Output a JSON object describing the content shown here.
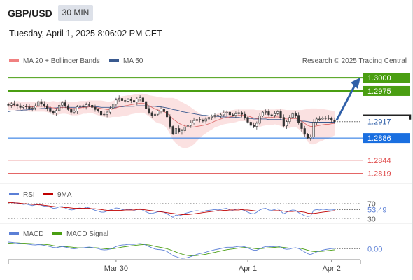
{
  "header": {
    "symbol": "GBP/USD",
    "timeframe": "30 MIN",
    "datetime": "Tuesday, April 1, 2025 8:06:02 PM CET"
  },
  "chart_data": [
    {
      "type": "candlestick",
      "title": "GBP/USD",
      "legend": [
        {
          "name": "MA 20 + Bollinger Bands",
          "color": "#f08080"
        },
        {
          "name": "MA 50",
          "color": "#3a5a8f"
        }
      ],
      "watermark": "Research © 2025 Trading Central",
      "ylim": [
        1.28,
        1.302
      ],
      "x_ticks": [
        "Mar 30",
        "Apr 1",
        "Apr 2"
      ],
      "levels": [
        {
          "value": 1.3,
          "label": "1.3000",
          "color": "#4a9e12",
          "kind": "resistance"
        },
        {
          "value": 1.2975,
          "label": "1.2975",
          "color": "#4a9e12",
          "kind": "resistance"
        },
        {
          "value": 1.2917,
          "label": "1.2917",
          "color": "#333333",
          "kind": "last"
        },
        {
          "value": 1.2886,
          "label": "1.2886",
          "color": "#1a6fe0",
          "kind": "pivot"
        },
        {
          "value": 1.2844,
          "label": "1.2844",
          "color": "#e05050",
          "kind": "support"
        },
        {
          "value": 1.2819,
          "label": "1.2819",
          "color": "#e05050",
          "kind": "support"
        }
      ],
      "closes": [
        1.2948,
        1.2951,
        1.2949,
        1.2947,
        1.2944,
        1.2946,
        1.2945,
        1.2942,
        1.2943,
        1.2947,
        1.2955,
        1.295,
        1.2947,
        1.2942,
        1.2936,
        1.2933,
        1.2938,
        1.2948,
        1.2953,
        1.2947,
        1.294,
        1.2935,
        1.2937,
        1.2945,
        1.2947,
        1.2945,
        1.2949,
        1.2948,
        1.2944,
        1.294,
        1.2937,
        1.293,
        1.2931,
        1.2935,
        1.2942,
        1.295,
        1.2958,
        1.2961,
        1.2957,
        1.2956,
        1.2959,
        1.2957,
        1.2954,
        1.296,
        1.2962,
        1.2955,
        1.2942,
        1.2934,
        1.2929,
        1.2931,
        1.2937,
        1.2941,
        1.2936,
        1.2926,
        1.2908,
        1.2894,
        1.2904,
        1.2898,
        1.29,
        1.2907,
        1.291,
        1.2915,
        1.2919,
        1.2921,
        1.292,
        1.2918,
        1.2922,
        1.2925,
        1.2927,
        1.2929,
        1.2928,
        1.293,
        1.2933,
        1.2935,
        1.293,
        1.2929,
        1.2932,
        1.2934,
        1.2931,
        1.2925,
        1.2916,
        1.291,
        1.2908,
        1.2914,
        1.2928,
        1.2935,
        1.2936,
        1.293,
        1.2929,
        1.2932,
        1.2936,
        1.2925,
        1.2909,
        1.2917,
        1.2925,
        1.2932,
        1.2929,
        1.2915,
        1.2904,
        1.2893,
        1.2886,
        1.2888,
        1.2916,
        1.2922,
        1.2922,
        1.2924,
        1.2924,
        1.2923,
        1.292,
        1.2917
      ],
      "ma20": [
        1.2946,
        1.2947,
        1.2947,
        1.2947,
        1.2946,
        1.2946,
        1.2946,
        1.2945,
        1.2945,
        1.2945,
        1.2946,
        1.2946,
        1.2946,
        1.2945,
        1.2944,
        1.2943,
        1.2942,
        1.2943,
        1.2944,
        1.2944,
        1.2943,
        1.2942,
        1.2942,
        1.2942,
        1.2943,
        1.2944,
        1.2944,
        1.2945,
        1.2945,
        1.2944,
        1.2943,
        1.2942,
        1.2941,
        1.294,
        1.294,
        1.2941,
        1.2943,
        1.2945,
        1.2946,
        1.2947,
        1.2948,
        1.2949,
        1.295,
        1.2951,
        1.2952,
        1.2952,
        1.295,
        1.2947,
        1.2944,
        1.2941,
        1.2939,
        1.2938,
        1.2936,
        1.2933,
        1.2928,
        1.2922,
        1.2918,
        1.2914,
        1.2911,
        1.2909,
        1.2908,
        1.2907,
        1.2907,
        1.2908,
        1.2909,
        1.291,
        1.2911,
        1.2913,
        1.2915,
        1.2918,
        1.292,
        1.2922,
        1.2924,
        1.2925,
        1.2926,
        1.2927,
        1.2928,
        1.2929,
        1.2929,
        1.2929,
        1.2928,
        1.2926,
        1.2924,
        1.2923,
        1.2923,
        1.2924,
        1.2925,
        1.2925,
        1.2925,
        1.2926,
        1.2926,
        1.2925,
        1.2923,
        1.2922,
        1.2922,
        1.2923,
        1.2923,
        1.2921,
        1.2918,
        1.2914,
        1.291,
        1.2908,
        1.2908,
        1.2909,
        1.291,
        1.2911,
        1.2912,
        1.2912,
        1.2913,
        1.2914
      ],
      "bb_upper": [
        1.2953,
        1.2955,
        1.2955,
        1.2956,
        1.2955,
        1.2955,
        1.2955,
        1.2954,
        1.2954,
        1.2954,
        1.2956,
        1.2956,
        1.2956,
        1.2955,
        1.2955,
        1.2956,
        1.2955,
        1.2955,
        1.2956,
        1.2956,
        1.2955,
        1.2955,
        1.2955,
        1.2955,
        1.2956,
        1.2956,
        1.2956,
        1.2957,
        1.2957,
        1.2957,
        1.2957,
        1.2957,
        1.2956,
        1.2955,
        1.2955,
        1.2956,
        1.296,
        1.2964,
        1.2965,
        1.2966,
        1.2967,
        1.2967,
        1.2968,
        1.2969,
        1.297,
        1.297,
        1.2969,
        1.2967,
        1.2966,
        1.2965,
        1.2964,
        1.2963,
        1.2962,
        1.2962,
        1.2962,
        1.2962,
        1.296,
        1.2957,
        1.2954,
        1.2951,
        1.2948,
        1.2944,
        1.294,
        1.2936,
        1.2932,
        1.2929,
        1.2927,
        1.2927,
        1.2928,
        1.293,
        1.2932,
        1.2934,
        1.2936,
        1.2937,
        1.2938,
        1.2939,
        1.294,
        1.294,
        1.294,
        1.294,
        1.294,
        1.294,
        1.294,
        1.2939,
        1.2939,
        1.2939,
        1.294,
        1.294,
        1.294,
        1.294,
        1.2941,
        1.2941,
        1.294,
        1.2939,
        1.2939,
        1.2939,
        1.2939,
        1.2939,
        1.2939,
        1.294,
        1.2941,
        1.2942,
        1.2942,
        1.2942,
        1.2941,
        1.2941,
        1.294,
        1.2939,
        1.2938,
        1.2937
      ],
      "bb_lower": [
        1.2939,
        1.2939,
        1.2939,
        1.2938,
        1.2937,
        1.2937,
        1.2937,
        1.2936,
        1.2936,
        1.2936,
        1.2936,
        1.2936,
        1.2936,
        1.2935,
        1.2933,
        1.293,
        1.2929,
        1.2931,
        1.2932,
        1.2932,
        1.2931,
        1.2929,
        1.2929,
        1.2929,
        1.293,
        1.2932,
        1.2932,
        1.2933,
        1.2933,
        1.2931,
        1.2929,
        1.2927,
        1.2926,
        1.2925,
        1.2925,
        1.2926,
        1.2926,
        1.2926,
        1.2927,
        1.2928,
        1.2929,
        1.2931,
        1.2932,
        1.2933,
        1.2934,
        1.2934,
        1.2931,
        1.2927,
        1.2922,
        1.2917,
        1.2914,
        1.2913,
        1.291,
        1.2904,
        1.2894,
        1.2882,
        1.2876,
        1.2871,
        1.2868,
        1.2867,
        1.2868,
        1.287,
        1.2874,
        1.288,
        1.2886,
        1.2891,
        1.2895,
        1.2899,
        1.2902,
        1.2906,
        1.2908,
        1.291,
        1.2912,
        1.2913,
        1.2914,
        1.2915,
        1.2916,
        1.2918,
        1.2918,
        1.2918,
        1.2916,
        1.2912,
        1.2908,
        1.2907,
        1.2907,
        1.2909,
        1.291,
        1.291,
        1.291,
        1.2912,
        1.2911,
        1.2909,
        1.2906,
        1.2905,
        1.2905,
        1.2907,
        1.2907,
        1.2903,
        1.2897,
        1.2888,
        1.2879,
        1.2874,
        1.2874,
        1.2876,
        1.2879,
        1.2881,
        1.2884,
        1.2885,
        1.2888,
        1.2891
      ],
      "ma50": [
        1.2936,
        1.2937,
        1.2937,
        1.2938,
        1.2938,
        1.2939,
        1.2939,
        1.294,
        1.294,
        1.2941,
        1.2941,
        1.2942,
        1.2942,
        1.2943,
        1.2943,
        1.2943,
        1.2943,
        1.2944,
        1.2944,
        1.2944,
        1.2944,
        1.2944,
        1.2944,
        1.2944,
        1.2944,
        1.2945,
        1.2945,
        1.2945,
        1.2945,
        1.2945,
        1.2945,
        1.2944,
        1.2944,
        1.2944,
        1.2944,
        1.2944,
        1.2944,
        1.2945,
        1.2945,
        1.2946,
        1.2946,
        1.2946,
        1.2946,
        1.2947,
        1.2947,
        1.2947,
        1.2947,
        1.2946,
        1.2946,
        1.2946,
        1.2945,
        1.2945,
        1.2944,
        1.2943,
        1.2942,
        1.294,
        1.2939,
        1.2938,
        1.2936,
        1.2935,
        1.2934,
        1.2933,
        1.2932,
        1.2931,
        1.293,
        1.2929,
        1.2929,
        1.2928,
        1.2928,
        1.2927,
        1.2927,
        1.2926,
        1.2926,
        1.2926,
        1.2925,
        1.2925,
        1.2925,
        1.2925,
        1.2924,
        1.2924,
        1.2923,
        1.2923,
        1.2922,
        1.2922,
        1.2922,
        1.2922,
        1.2922,
        1.2921,
        1.2921,
        1.2921,
        1.2921,
        1.2921,
        1.292,
        1.292,
        1.292,
        1.292,
        1.292,
        1.2919,
        1.2918,
        1.2918,
        1.2917,
        1.2916,
        1.2916,
        1.2916,
        1.2916,
        1.2916,
        1.2916,
        1.2916,
        1.2916,
        1.2916
      ]
    },
    {
      "type": "line",
      "title": "RSI",
      "legend": [
        {
          "name": "RSI",
          "color": "#5b7fd6"
        },
        {
          "name": "9MA",
          "color": "#c00000"
        }
      ],
      "ylim": [
        20,
        80
      ],
      "reference_lines": [
        "70",
        "30"
      ],
      "last_value": "53.49",
      "series": [
        {
          "name": "RSI",
          "values": [
            74,
            73,
            72,
            70,
            69,
            67,
            68,
            66,
            64,
            66,
            68,
            65,
            63,
            62,
            60,
            57,
            58,
            61,
            62,
            58,
            55,
            53,
            54,
            57,
            58,
            56,
            60,
            58,
            55,
            52,
            50,
            47,
            47,
            50,
            53,
            55,
            58,
            57,
            54,
            53,
            55,
            54,
            52,
            54,
            56,
            52,
            48,
            45,
            44,
            46,
            48,
            49,
            47,
            43,
            38,
            34,
            40,
            38,
            40,
            44,
            46,
            48,
            50,
            51,
            50,
            49,
            51,
            52,
            53,
            54,
            53,
            54,
            56,
            57,
            53,
            52,
            55,
            56,
            54,
            51,
            47,
            44,
            43,
            47,
            53,
            56,
            57,
            53,
            52,
            54,
            56,
            50,
            43,
            47,
            51,
            53,
            52,
            46,
            42,
            38,
            36,
            37,
            52,
            54,
            53,
            55,
            54,
            53,
            53,
            53.49
          ]
        },
        {
          "name": "9MA",
          "values": [
            72,
            72,
            71,
            71,
            70,
            69,
            69,
            68,
            67,
            67,
            66,
            66,
            65,
            64,
            63,
            62,
            61,
            61,
            60,
            59,
            59,
            58,
            57,
            57,
            57,
            57,
            57,
            57,
            56,
            56,
            55,
            54,
            53,
            52,
            52,
            52,
            52,
            52,
            52,
            53,
            53,
            53,
            53,
            54,
            54,
            54,
            53,
            52,
            51,
            50,
            49,
            48,
            47,
            46,
            45,
            44,
            43,
            42,
            41,
            41,
            41,
            42,
            43,
            44,
            45,
            46,
            47,
            48,
            49,
            50,
            51,
            51,
            52,
            52,
            53,
            53,
            53,
            53,
            54,
            53,
            53,
            52,
            51,
            50,
            50,
            50,
            50,
            50,
            50,
            51,
            51,
            51,
            50,
            49,
            49,
            49,
            50,
            49,
            48,
            47,
            45,
            44,
            44,
            45,
            46,
            47,
            48,
            49,
            50,
            51
          ]
        }
      ]
    },
    {
      "type": "line",
      "title": "MACD",
      "legend": [
        {
          "name": "MACD",
          "color": "#5b7fd6"
        },
        {
          "name": "MACD Signal",
          "color": "#4a9e12"
        }
      ],
      "zero_label": "0.00",
      "series": [
        {
          "name": "MACD",
          "values": [
            0.0006,
            0.00058,
            0.00055,
            0.00052,
            0.00048,
            0.00045,
            0.00043,
            0.0004,
            0.00036,
            0.00035,
            0.00038,
            0.00036,
            0.00031,
            0.00026,
            0.00019,
            0.00012,
            0.0001,
            0.00015,
            0.0002,
            0.00016,
            0.0001,
            3e-05,
            1e-05,
            4e-05,
            8e-05,
            9e-05,
            0.00013,
            0.00015,
            0.00012,
            7e-05,
            2e-05,
            -6e-05,
            -0.0001,
            -8e-05,
            -2e-05,
            8e-05,
            0.0002,
            0.0003,
            0.00034,
            0.00036,
            0.0004,
            0.00041,
            0.0004,
            0.00044,
            0.00048,
            0.00044,
            0.00032,
            0.0002,
            8e-05,
            -2e-05,
            -6e-05,
            -8e-05,
            -0.00013,
            -0.00024,
            -0.00042,
            -0.00062,
            -0.0007,
            -0.0008,
            -0.00085,
            -0.00084,
            -0.00078,
            -0.0007,
            -0.0006,
            -0.0005,
            -0.00043,
            -0.00038,
            -0.0003,
            -0.00022,
            -0.00015,
            -8e-05,
            -3e-05,
            2e-05,
            8e-05,
            0.00014,
            0.00014,
            0.00014,
            0.00018,
            0.00022,
            0.00022,
            0.00018,
            8e-05,
            -4e-05,
            -0.00012,
            -0.00012,
            0.0,
            0.00012,
            0.0002,
            0.0002,
            0.00018,
            0.0002,
            0.00024,
            0.00016,
            0.0,
            -4e-05,
            -2e-05,
            6e-05,
            0.0001,
            2e-05,
            -0.00012,
            -0.00028,
            -0.00044,
            -0.00052,
            -0.0004,
            -0.00028,
            -0.0002,
            -0.00012,
            -6e-05,
            -2e-05,
            2e-05,
            4e-05
          ]
        },
        {
          "name": "MACD Signal",
          "values": [
            0.0005,
            0.00052,
            0.00053,
            0.00053,
            0.00052,
            0.00051,
            0.00049,
            0.00048,
            0.00046,
            0.00044,
            0.00043,
            0.00042,
            0.0004,
            0.00037,
            0.00034,
            0.00029,
            0.00025,
            0.00023,
            0.00022,
            0.00021,
            0.00018,
            0.00015,
            0.00012,
            0.0001,
            9e-05,
            9e-05,
            0.0001,
            0.00011,
            0.00011,
            0.0001,
            8e-05,
            5e-05,
            2e-05,
            0.0,
            -1e-05,
            1e-05,
            5e-05,
            0.0001,
            0.00015,
            0.00019,
            0.00023,
            0.00027,
            0.0003,
            0.00033,
            0.00036,
            0.00038,
            0.00037,
            0.00034,
            0.00029,
            0.00023,
            0.00017,
            0.00012,
            7e-05,
            1e-05,
            -8e-05,
            -0.00019,
            -0.00029,
            -0.00039,
            -0.00048,
            -0.00055,
            -0.0006,
            -0.00062,
            -0.00062,
            -0.0006,
            -0.00057,
            -0.00053,
            -0.00049,
            -0.00043,
            -0.00038,
            -0.00032,
            -0.00026,
            -0.0002,
            -0.00014,
            -8e-05,
            -4e-05,
            -1e-05,
            3e-05,
            7e-05,
            0.0001,
            0.00012,
            0.00011,
            8e-05,
            4e-05,
            1e-05,
            1e-05,
            3e-05,
            7e-05,
            9e-05,
            0.00011,
            0.00013,
            0.00015,
            0.00015,
            0.00012,
            9e-05,
            6e-05,
            6e-05,
            7e-05,
            6e-05,
            2e-05,
            -4e-05,
            -0.00012,
            -0.0002,
            -0.00024,
            -0.00025,
            -0.00024,
            -0.00022,
            -0.00019,
            -0.00015,
            -0.00012,
            -9e-05
          ]
        }
      ]
    }
  ]
}
